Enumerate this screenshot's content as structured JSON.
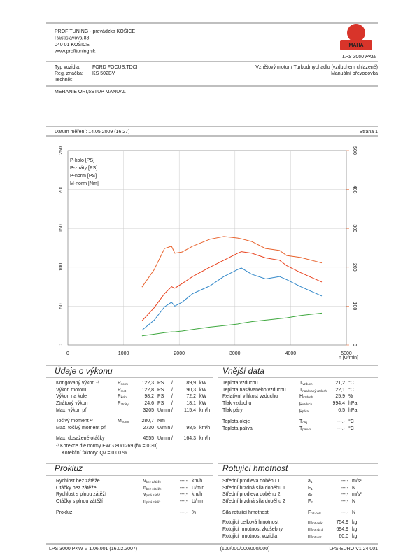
{
  "header": {
    "company": [
      "PROFITUNING - prevádzka KOŠICE",
      "Rastislavova 88",
      "040 01 KOŠICE",
      "www.profituning.sk"
    ],
    "logo_text": "MAHA",
    "logo_caption": "LPS 3000 PKW"
  },
  "vehicle": {
    "rows": [
      {
        "label": "Typ vozidla:",
        "value": "FORD FOCUS,TDCI"
      },
      {
        "label": "Reg. značka:",
        "value": "KS 502BV"
      },
      {
        "label": "Technik:"
      }
    ],
    "engine": "Vznětový motor / Turbodmychadlo (vzduchem chlazené)",
    "gearbox": "Manuální převodovka"
  },
  "measurement": "MERANIE ORI,5STUP MANUAL",
  "date": "Datum měření: 14.05.2009 (16:27)",
  "page": "Strana 1",
  "chart_data": {
    "type": "line",
    "x_label": "n [U/min]",
    "xlim": [
      0,
      5000
    ],
    "xticks": [
      0,
      1000,
      2000,
      3000,
      4000,
      5000
    ],
    "ylim": [
      0,
      250
    ],
    "yticks": [
      0,
      50,
      100,
      150,
      200,
      250
    ],
    "y2lim": [
      0,
      500
    ],
    "y2ticks": [
      0,
      100,
      200,
      300,
      400,
      500
    ],
    "y2_color": "#e8622c",
    "grid": true,
    "legend": "upper left",
    "x": [
      1330,
      1550,
      1735,
      1860,
      1920,
      2050,
      2240,
      2550,
      2800,
      3050,
      3115,
      3300,
      3550,
      3800,
      3930,
      4180,
      4560
    ],
    "series": [
      {
        "name": "P-kolo [PS]",
        "color": "#2f86c8",
        "values": [
          19,
          32,
          49,
          55,
          50,
          55,
          66,
          76,
          88,
          97,
          99,
          91,
          85,
          88,
          84,
          75,
          63
        ]
      },
      {
        "name": "P-ztráty [PS]",
        "color": "#3fa83f",
        "values": [
          12,
          14,
          16,
          17,
          17,
          18,
          20,
          23,
          25,
          27,
          28,
          30,
          32,
          34,
          35,
          38,
          41
        ]
      },
      {
        "name": "P-norm [PS]",
        "color": "#e8401c",
        "values": [
          31,
          48,
          66,
          75,
          73,
          79,
          88,
          100,
          109,
          118,
          120,
          118,
          112,
          109,
          102,
          93,
          81
        ]
      },
      {
        "name": "M-norm [Nm]",
        "color": "#e8622c",
        "axis": "y2",
        "values": [
          149,
          194,
          248,
          254,
          236,
          239,
          254,
          272,
          279,
          275,
          273,
          266,
          248,
          243,
          230,
          225,
          211
        ]
      }
    ]
  },
  "performance": {
    "title": "Údaje o výkonu",
    "rows": [
      {
        "label": "Korigovaný výkon ¹⁾",
        "symbol": {
          "main": "P",
          "sub": "norm"
        },
        "value": "122,3",
        "unit": "PS",
        "separator": "/",
        "value2": "89,9",
        "unit2": "kW",
        "color": "#e8401c"
      },
      {
        "label": "Výkon motoru",
        "symbol": {
          "main": "P",
          "sub": "mot"
        },
        "value": "122,8",
        "unit": "PS",
        "separator": "/",
        "value2": "90,3",
        "unit2": "kW",
        "color": "#e8401c"
      },
      {
        "label": "Výkon na kole",
        "symbol": {
          "main": "P",
          "sub": "kolo"
        },
        "value": "98,2",
        "unit": "PS",
        "separator": "/",
        "value2": "72,2",
        "unit2": "kW",
        "color": "#2f86c8"
      },
      {
        "label": "Ztrátový výkon",
        "symbol": {
          "main": "P",
          "sub": "ztráty"
        },
        "value": "24,6",
        "unit": "PS",
        "separator": "/",
        "value2": "18,1",
        "unit2": "kW",
        "color": "#3fa83f"
      },
      {
        "label": "Max. výkon při",
        "value": "3205",
        "unit": "U/min",
        "separator": "/",
        "value2": "115,4",
        "unit2": "km/h",
        "color": "#222",
        "value_color": "#999"
      },
      {
        "label": "Točivý moment ¹⁾",
        "symbol": {
          "main": "M",
          "sub": "norm"
        },
        "value": "280,7",
        "unit": "Nm",
        "color": "#e8401c"
      },
      {
        "label": "Max. točivý moment při",
        "value": "2730",
        "unit": "U/min",
        "separator": "/",
        "value2": "98,5",
        "unit2": "km/h",
        "color": "#222",
        "value_color": "#999"
      },
      {
        "label": "Max. dosažené otáčky",
        "value": "4555",
        "unit": "U/min",
        "separator": "/",
        "value2": "164,3",
        "unit2": "km/h",
        "color": "#222",
        "value_color": "#999"
      }
    ],
    "notes": [
      "¹⁾ Korekce dle normy EWG 80/1269 (fw = 0,30)",
      "Korekční faktory: Qv = 0,00 %"
    ],
    "notes_color": "#e8401c"
  },
  "external": {
    "title": "Vnější data",
    "rows": [
      {
        "label": "Teplota vzduchu",
        "symbol": {
          "main": "T",
          "sub": "vzduch"
        },
        "value": "21,2",
        "unit": "°C"
      },
      {
        "label": "Teplota nasávaného vzduchu",
        "symbol": {
          "main": "T",
          "sub": "nasávaný vzduch"
        },
        "value": "22,1",
        "unit": "°C"
      },
      {
        "label": "Relativní vlhkost vzduchu",
        "symbol": {
          "main": "H",
          "sub": "vzduch"
        },
        "value": "25,9",
        "unit": "%"
      },
      {
        "label": "Tlak vzduchu",
        "symbol": {
          "main": "p",
          "sub": "vzduch"
        },
        "value": "994,4",
        "unit": "hPa"
      },
      {
        "label": "Tlak páry",
        "symbol": {
          "main": "p",
          "sub": "pára"
        },
        "value": "6,5",
        "unit": "hPa"
      },
      {
        "label": "Teplota oleje",
        "symbol": {
          "main": "T",
          "sub": "olej"
        },
        "value": "---,-",
        "unit": "°C"
      },
      {
        "label": "Teplota paliva",
        "symbol": {
          "main": "T",
          "sub": "palivo"
        },
        "value": "---,-",
        "unit": "°C"
      }
    ]
  },
  "slip": {
    "title": "Prokluz",
    "rows": [
      {
        "label": "Rychlost bez zátěže",
        "symbol": {
          "main": "v",
          "sub": "bez zátěže"
        },
        "value": "---,-",
        "unit": "km/h"
      },
      {
        "label": "Otáčky bez zátěže",
        "symbol": {
          "main": "n",
          "sub": "bez zátěže"
        },
        "value": "---,-",
        "unit": "U/min"
      },
      {
        "label": "Rychlost s plnou zátěží",
        "symbol": {
          "main": "v",
          "sub": "plná zátěž"
        },
        "value": "---,-",
        "unit": "km/h"
      },
      {
        "label": "Otáčky s plnou zátěží",
        "symbol": {
          "main": "n",
          "sub": "plná zátěž"
        },
        "value": "---,-",
        "unit": "U/min"
      },
      {
        "label": "Prokluz",
        "value": "---,-",
        "unit": "%"
      }
    ]
  },
  "rotating": {
    "title": "Rotující hmotnost",
    "rows": [
      {
        "label": "Střední prodleva doběhu 1",
        "symbol": {
          "main": "a",
          "sub": "1"
        },
        "value": "---,-",
        "unit": "m/s²"
      },
      {
        "label": "Střední brzdná síla doběhu 1",
        "symbol": {
          "main": "F",
          "sub": "1"
        },
        "value": "---,-",
        "unit": "N"
      },
      {
        "label": "Střední prodleva doběhu 2",
        "symbol": {
          "main": "a",
          "sub": "2"
        },
        "value": "---,-",
        "unit": "m/s²"
      },
      {
        "label": "Střední brzdná síla doběhu 2",
        "symbol": {
          "main": "F",
          "sub": "2"
        },
        "value": "---,-",
        "unit": "N"
      },
      {
        "label": "Síla rotující hmotnost",
        "symbol": {
          "main": "F",
          "sub": "rot-celk"
        },
        "value": "---,-",
        "unit": "N"
      },
      {
        "label": "Rotující celková hmotnost",
        "symbol": {
          "main": "m",
          "sub": "rot-celk"
        },
        "value": "754,9",
        "unit": "kg"
      },
      {
        "label": "Rotující hmotnost zkušebny",
        "symbol": {
          "main": "m",
          "sub": "rot-zkuš"
        },
        "value": "694,9",
        "unit": "kg"
      },
      {
        "label": "Rotující hmotnost vozidla",
        "symbol": {
          "main": "m",
          "sub": "rot-voz"
        },
        "value": "60,0",
        "unit": "kg"
      }
    ]
  },
  "footer": {
    "left": "LPS 3000 PKW V 1.06.001 (16.02.2007)",
    "center": "(100/000/000/000/000)",
    "right": "LPS-EURO V1.24.001"
  }
}
